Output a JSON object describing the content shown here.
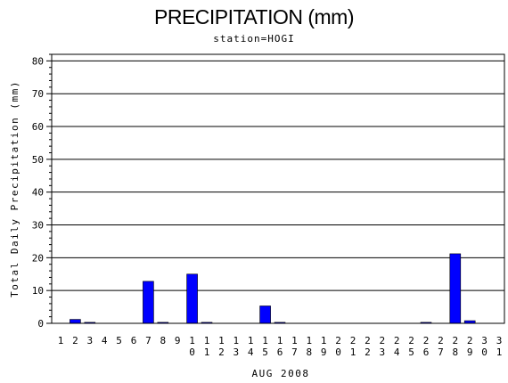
{
  "chart_data": {
    "type": "bar",
    "title": "PRECIPITATION (mm)",
    "subtitle": "station=HOGI",
    "xlabel": "AUG 2008",
    "ylabel": "Total Daily Precipitation (mm)",
    "ylim": [
      0,
      82
    ],
    "yticks": [
      0,
      10,
      20,
      30,
      40,
      50,
      60,
      70,
      80
    ],
    "grid": true,
    "bar_color": "#0000ff",
    "categories": [
      "1",
      "2",
      "3",
      "4",
      "5",
      "6",
      "7",
      "8",
      "9",
      "10",
      "11",
      "12",
      "13",
      "14",
      "15",
      "16",
      "17",
      "18",
      "19",
      "20",
      "21",
      "22",
      "23",
      "24",
      "25",
      "26",
      "27",
      "28",
      "29",
      "30",
      "31"
    ],
    "values": [
      0,
      1.2,
      0.3,
      0,
      0,
      0,
      12.8,
      0.3,
      0,
      15,
      0.3,
      0,
      0,
      0,
      5.3,
      0.3,
      0,
      0,
      0,
      0,
      0,
      0,
      0,
      0,
      0,
      0.3,
      0,
      21.2,
      0.8,
      0,
      0
    ]
  }
}
